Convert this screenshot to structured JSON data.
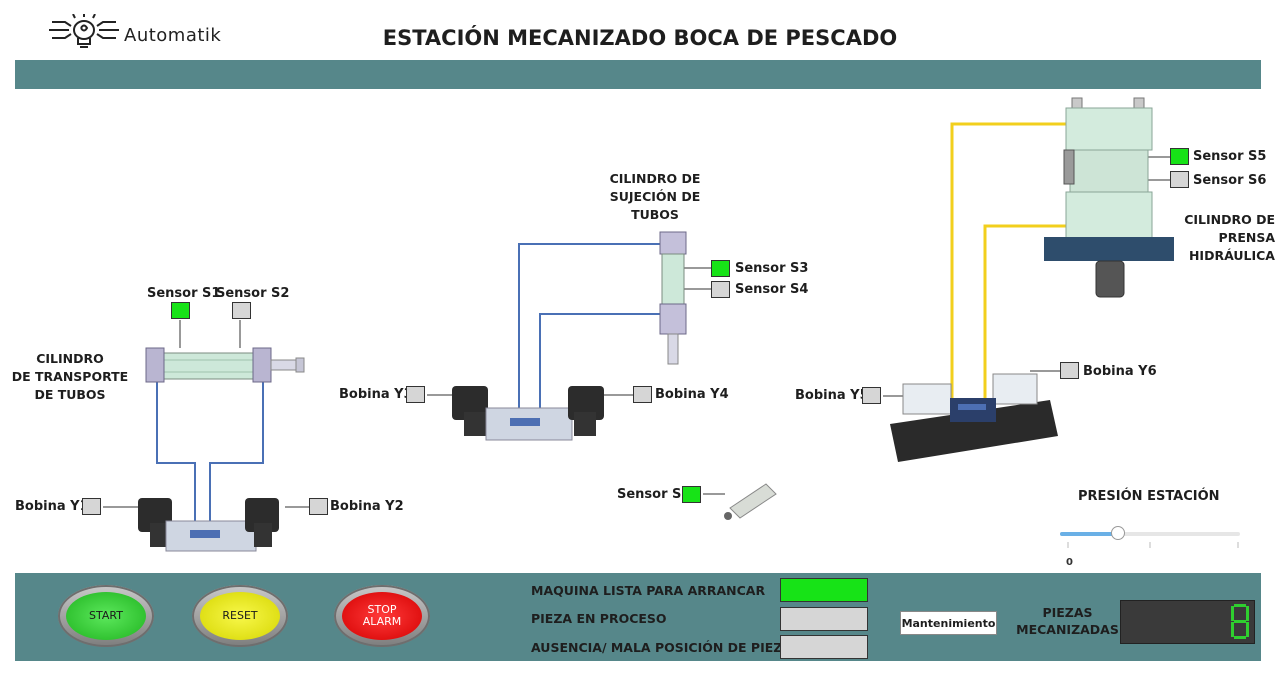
{
  "header": {
    "brand": "Automatik",
    "title": "ESTACIÓN MECANIZADO BOCA DE PESCADO"
  },
  "cylinders": {
    "transport": [
      "CILINDRO",
      "DE TRANSPORTE",
      "DE TUBOS"
    ],
    "clamp": [
      "CILINDRO DE",
      "SUJECIÓN DE",
      "TUBOS"
    ],
    "press": [
      "CILINDRO DE",
      "PRENSA",
      "HIDRÁULICA"
    ]
  },
  "sensors": {
    "s1": {
      "label": "Sensor S1",
      "active": true
    },
    "s2": {
      "label": "Sensor S2",
      "active": false
    },
    "s3": {
      "label": "Sensor S3",
      "active": true
    },
    "s4": {
      "label": "Sensor S4",
      "active": false
    },
    "s5": {
      "label": "Sensor S5",
      "active": true
    },
    "s6": {
      "label": "Sensor S6",
      "active": false
    },
    "s7": {
      "label": "Sensor S7",
      "active": true
    }
  },
  "coils": {
    "y1": {
      "label": "Bobina Y1",
      "active": false
    },
    "y2": {
      "label": "Bobina Y2",
      "active": false
    },
    "y3": {
      "label": "Bobina Y3",
      "active": false
    },
    "y4": {
      "label": "Bobina Y4",
      "active": false
    },
    "y5": {
      "label": "Bobina Y5",
      "active": false
    },
    "y6": {
      "label": "Bobina Y6",
      "active": false
    }
  },
  "pressure": {
    "label": "PRESIÓN ESTACIÓN",
    "value_label": "0",
    "slider_fraction": 0.32
  },
  "controls": {
    "start": "START",
    "reset": "RESET",
    "stop_alarm_line1": "STOP",
    "stop_alarm_line2": "ALARM"
  },
  "status": {
    "ready": {
      "label": "MAQUINA LISTA PARA ARRANCAR",
      "active": true
    },
    "in_process": {
      "label": "PIEZA EN PROCESO",
      "active": false
    },
    "missing": {
      "label": "AUSENCIA/ MALA POSICIÓN DE PIEZA",
      "active": false
    }
  },
  "maintenance_label": "Mantenimiento",
  "counter": {
    "label_line1": "PIEZAS",
    "label_line2": "MECANIZADAS"
  },
  "colors": {
    "panel": "#56878a",
    "indicator_on": "#17e317",
    "indicator_off": "#d6d6d6",
    "hydraulic_line": "#f2cf1c",
    "pneumatic_line": "#4a70b5"
  }
}
